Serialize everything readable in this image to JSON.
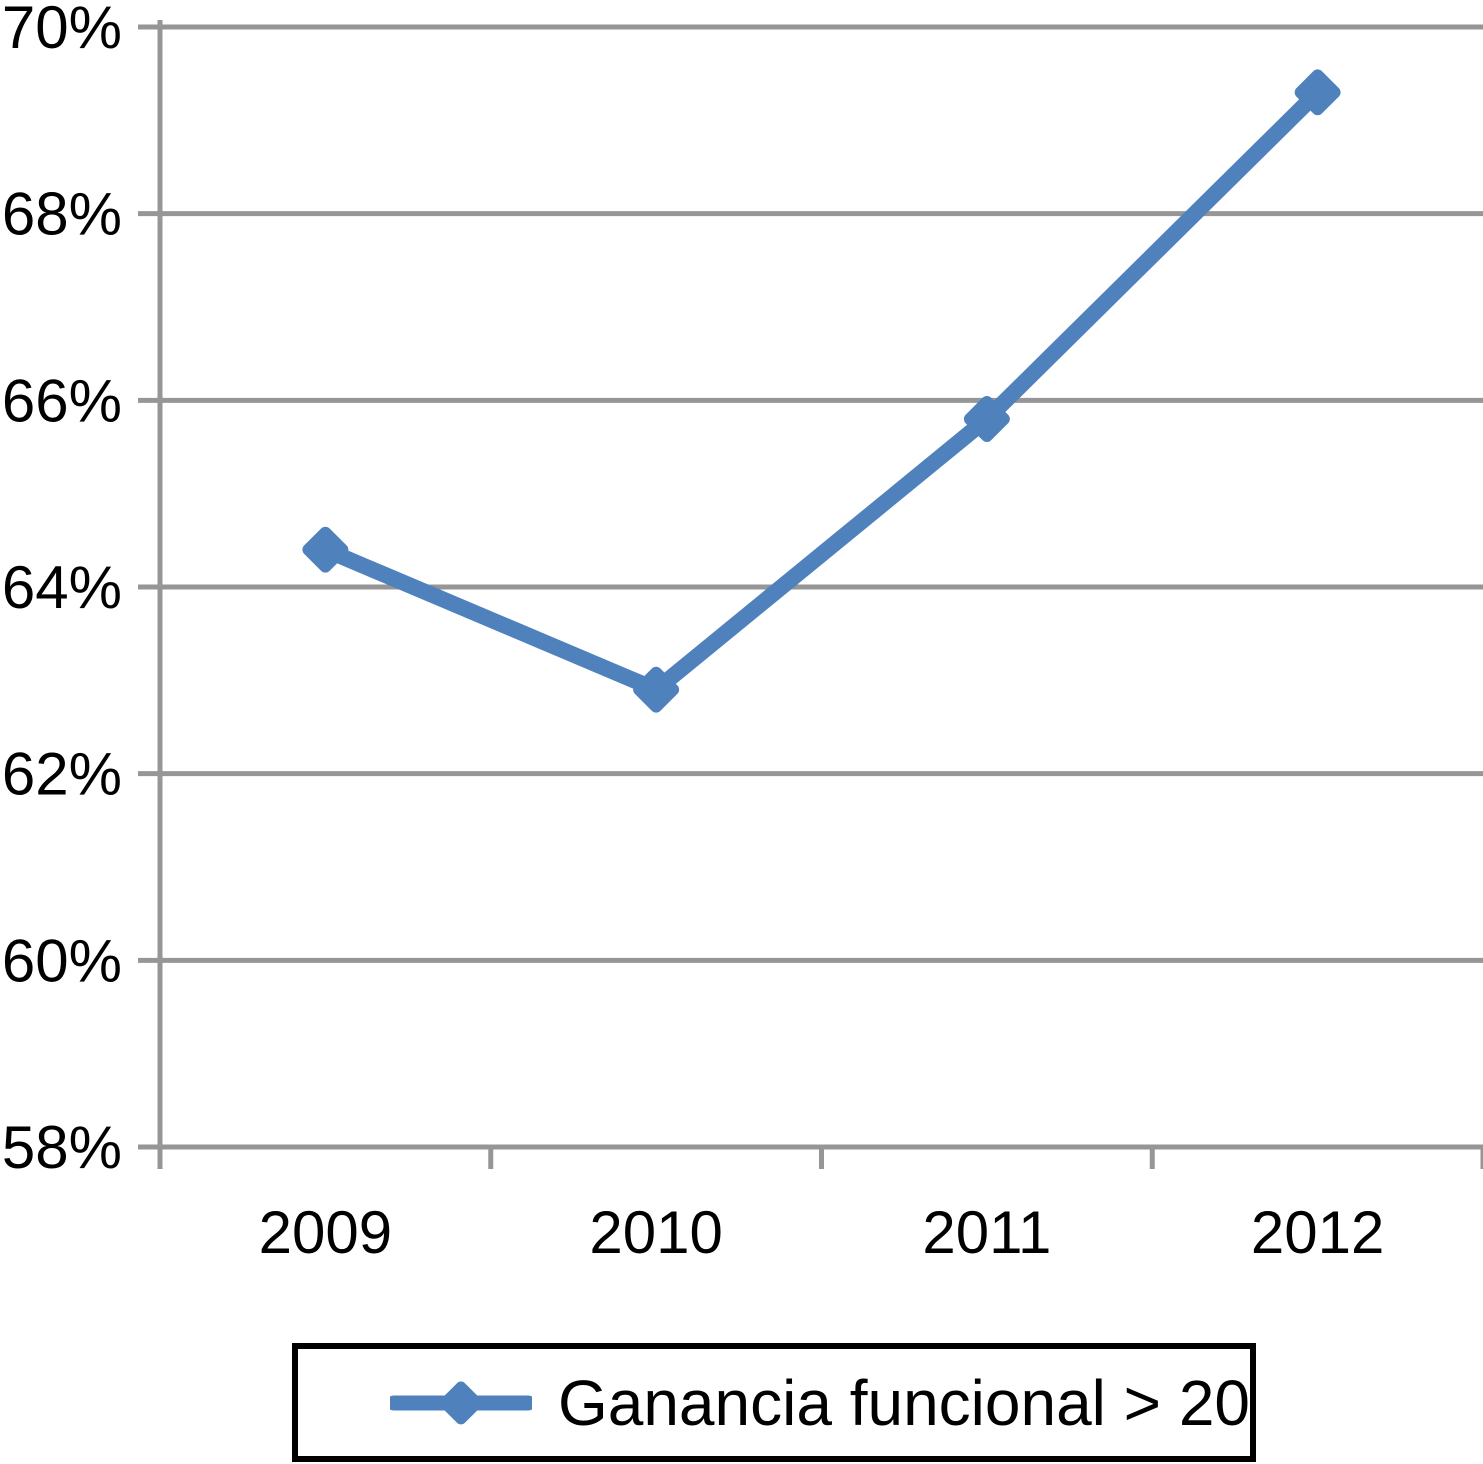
{
  "chart_data": {
    "type": "line",
    "title": "",
    "xlabel": "",
    "ylabel": "",
    "categories": [
      "2009",
      "2010",
      "2011",
      "2012"
    ],
    "series": [
      {
        "name": "Ganancia funcional > 20",
        "values": [
          64.4,
          62.9,
          65.8,
          69.3
        ],
        "marker": "diamond"
      }
    ],
    "ylim": [
      58,
      70
    ],
    "ytick_step": 2,
    "ytick_labels": [
      "58%",
      "60%",
      "62%",
      "64%",
      "66%",
      "68%",
      "70%"
    ],
    "grid": true,
    "legend_position": "bottom",
    "colors": {
      "series": "#4F81BD",
      "grid": "#969696",
      "axis": "#969696",
      "text": "#000000",
      "legend_border": "#000000",
      "background": "#ffffff"
    }
  },
  "legend": {
    "label": "Ganancia funcional > 20"
  }
}
